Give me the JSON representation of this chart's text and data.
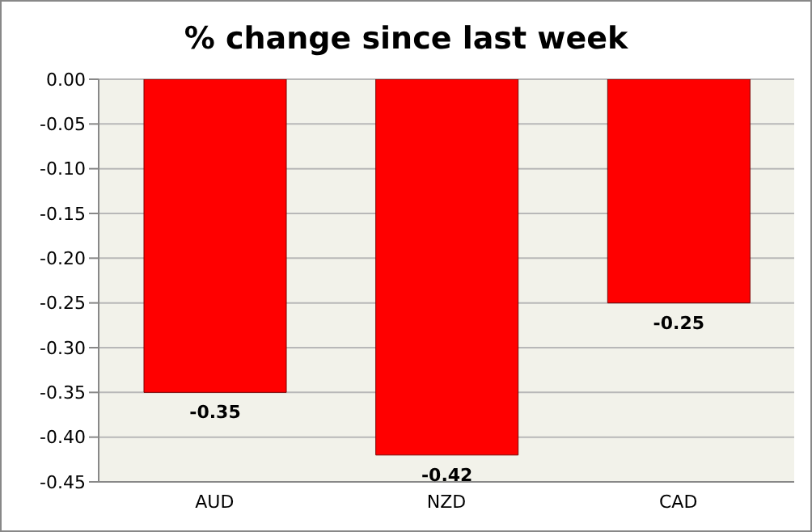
{
  "chart_data": {
    "type": "bar",
    "title": "% change since last week",
    "categories": [
      "AUD",
      "NZD",
      "CAD"
    ],
    "values": [
      -0.35,
      -0.42,
      -0.25
    ],
    "color": "#ff0000",
    "ylim": [
      -0.45,
      0
    ],
    "yticks": [
      {
        "value": 0,
        "label": "0.00"
      },
      {
        "value": -0.05,
        "label": "-0.05"
      },
      {
        "value": -0.1,
        "label": "-0.10"
      },
      {
        "value": -0.15,
        "label": "-0.15"
      },
      {
        "value": -0.2,
        "label": "-0.20"
      },
      {
        "value": -0.25,
        "label": "-0.25"
      },
      {
        "value": -0.3,
        "label": "-0.30"
      },
      {
        "value": -0.35,
        "label": "-0.35"
      },
      {
        "value": -0.4,
        "label": "-0.40"
      },
      {
        "value": -0.45,
        "label": "-0.45"
      }
    ],
    "grid": "y",
    "data_labels": true,
    "legend": false
  }
}
